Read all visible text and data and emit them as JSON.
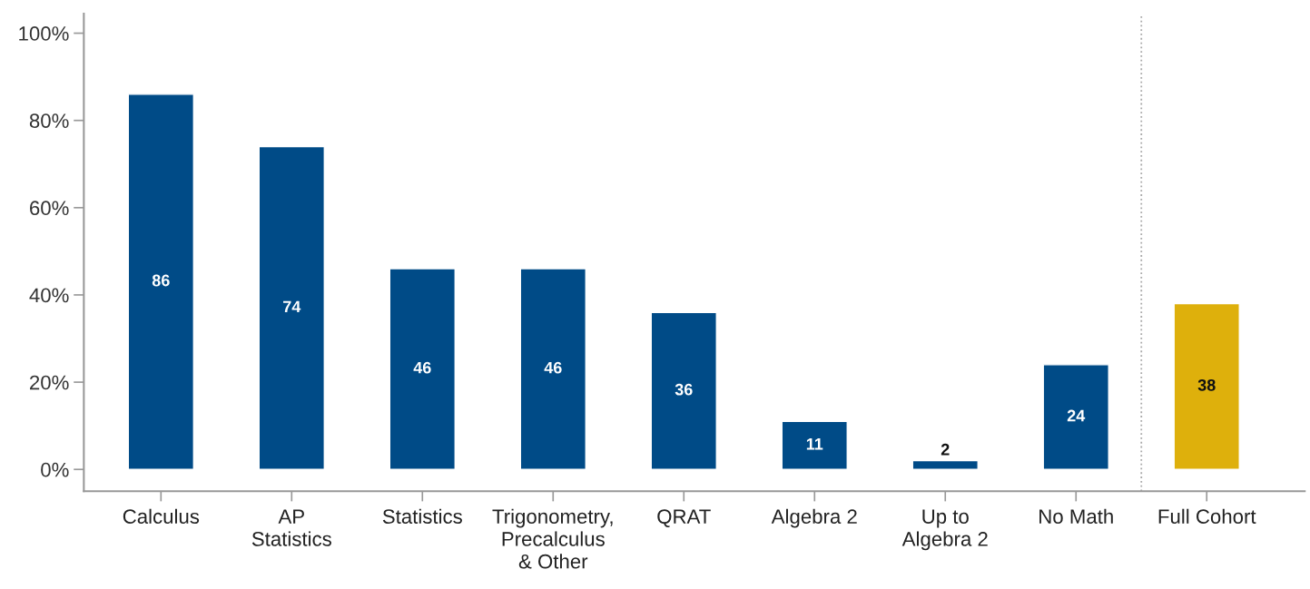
{
  "chart_data": {
    "type": "bar",
    "categories": [
      "Calculus",
      "AP\nStatistics",
      "Statistics",
      "Trigonometry,\nPrecalculus\n& Other",
      "QRAT",
      "Algebra 2",
      "Up to\nAlgebra 2",
      "No Math",
      "Full Cohort"
    ],
    "values": [
      86,
      74,
      46,
      46,
      36,
      11,
      2,
      24,
      38
    ],
    "colors": [
      "#004b87",
      "#004b87",
      "#004b87",
      "#004b87",
      "#004b87",
      "#004b87",
      "#004b87",
      "#004b87",
      "#deb00c"
    ],
    "ylim": [
      -5,
      104.5
    ],
    "yticks": [
      {
        "value": 0,
        "label": "0%"
      },
      {
        "value": 20,
        "label": "20%"
      },
      {
        "value": 40,
        "label": "40%"
      },
      {
        "value": 60,
        "label": "60%"
      },
      {
        "value": 80,
        "label": "80%"
      },
      {
        "value": 100,
        "label": "100%"
      }
    ],
    "data_labels": true,
    "grid": false,
    "legend": false
  }
}
